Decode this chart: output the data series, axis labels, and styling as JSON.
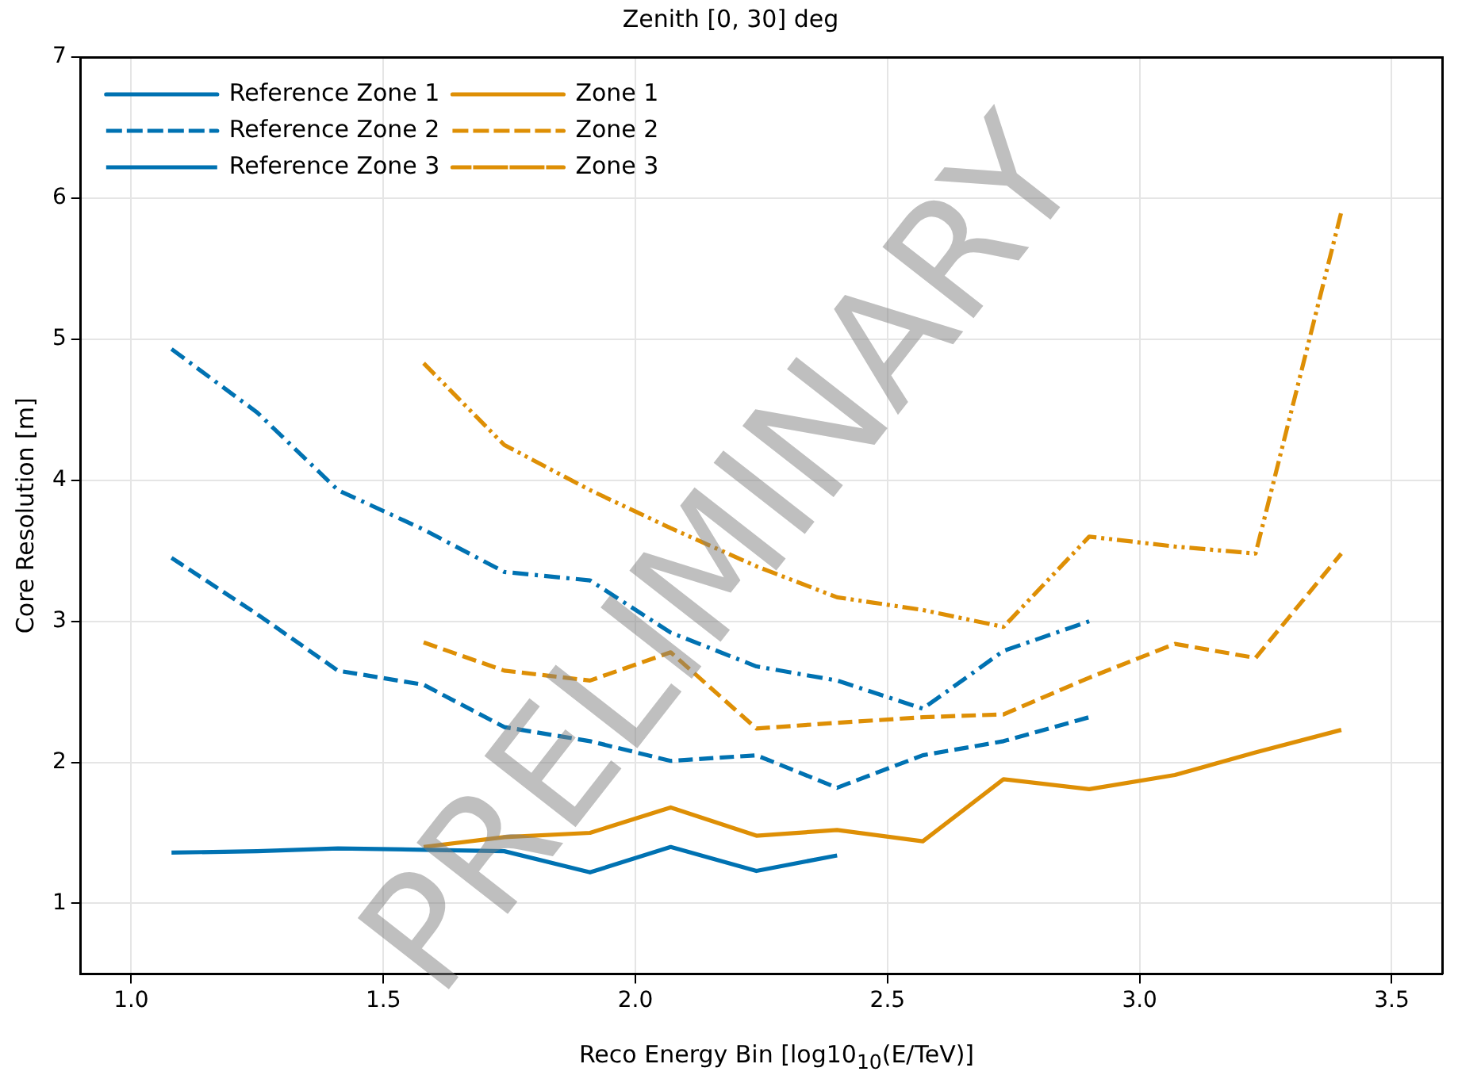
{
  "chart_data": {
    "type": "line",
    "title": "Zenith [0, 30] deg",
    "xlabel": "Reco Energy Bin [log10$_{10}$(E/TeV)]",
    "ylabel": "Core Resolution [m]",
    "xlim": [
      0.9,
      3.6
    ],
    "xticks": [
      {
        "value": 1.0,
        "label": "1.0"
      },
      {
        "value": 1.5,
        "label": "1.5"
      },
      {
        "value": 2.0,
        "label": "2.0"
      },
      {
        "value": 2.5,
        "label": "2.5"
      },
      {
        "value": 3.0,
        "label": "3.0"
      },
      {
        "value": 3.5,
        "label": "3.5"
      }
    ],
    "ylim": [
      0.5,
      7
    ],
    "yticks": [
      1,
      2,
      3,
      4,
      5,
      6,
      7
    ],
    "grid": true,
    "legend": "top left",
    "marker": "none",
    "annotations": [
      "PRELIMINARY"
    ],
    "series": [
      {
        "name": "Reference Zone 1",
        "color": "#0072b2",
        "line_style": "solid",
        "x": [
          1.08,
          1.25,
          1.41,
          1.58,
          1.74,
          1.91,
          2.07,
          2.24,
          2.4
        ],
        "values": [
          1.36,
          1.37,
          1.39,
          1.38,
          1.37,
          1.22,
          1.4,
          1.23,
          1.34
        ]
      },
      {
        "name": "Reference Zone 2",
        "color": "#0072b2",
        "line_style": "dashed",
        "x": [
          1.08,
          1.25,
          1.41,
          1.58,
          1.74,
          1.91,
          2.07,
          2.24,
          2.4,
          2.57,
          2.73,
          2.9
        ],
        "values": [
          3.45,
          3.05,
          2.65,
          2.55,
          2.25,
          2.15,
          2.01,
          2.05,
          1.82,
          2.05,
          2.15,
          2.32
        ]
      },
      {
        "name": "Reference Zone 3",
        "color": "#0072b2",
        "line_style": "dashdot",
        "x": [
          1.08,
          1.25,
          1.41,
          1.58,
          1.74,
          1.91,
          2.07,
          2.24,
          2.4,
          2.57,
          2.73,
          2.9
        ],
        "values": [
          4.93,
          4.48,
          3.93,
          3.65,
          3.35,
          3.29,
          2.92,
          2.68,
          2.58,
          2.38,
          2.79,
          3.0
        ]
      },
      {
        "name": "Zone 1",
        "color": "#de8f05",
        "line_style": "solid",
        "x": [
          1.58,
          1.74,
          1.91,
          2.07,
          2.24,
          2.4,
          2.57,
          2.73,
          2.9,
          3.07,
          3.23,
          3.4
        ],
        "values": [
          1.4,
          1.47,
          1.5,
          1.68,
          1.48,
          1.52,
          1.44,
          1.88,
          1.81,
          1.91,
          2.07,
          2.23
        ]
      },
      {
        "name": "Zone 2",
        "color": "#de8f05",
        "line_style": "dashed",
        "x": [
          1.58,
          1.74,
          1.91,
          2.07,
          2.24,
          2.4,
          2.57,
          2.73,
          2.9,
          3.07,
          3.23,
          3.4
        ],
        "values": [
          2.85,
          2.65,
          2.58,
          2.78,
          2.24,
          2.28,
          2.32,
          2.34,
          2.6,
          2.84,
          2.74,
          3.48
        ]
      },
      {
        "name": "Zone 3",
        "color": "#de8f05",
        "line_style": "dashdotdot",
        "x": [
          1.58,
          1.74,
          1.91,
          2.07,
          2.24,
          2.4,
          2.57,
          2.73,
          2.9,
          3.07,
          3.23,
          3.4
        ],
        "values": [
          4.83,
          4.25,
          3.93,
          3.66,
          3.39,
          3.17,
          3.08,
          2.96,
          3.6,
          3.53,
          3.48,
          5.9
        ]
      }
    ]
  }
}
